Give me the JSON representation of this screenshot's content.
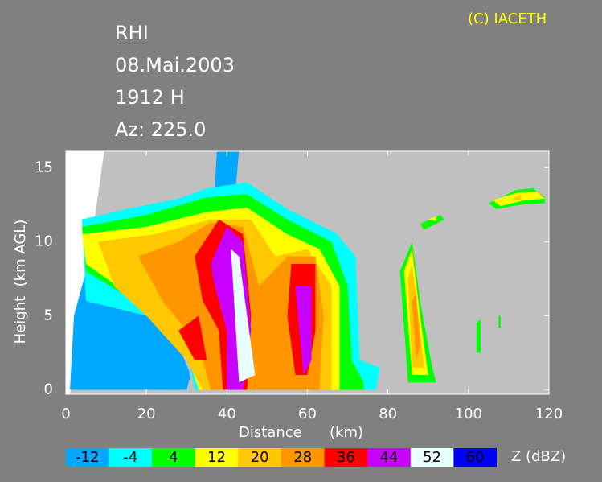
{
  "chart_data": {
    "type": "rhi",
    "title_lines": [
      "RHI",
      "08.Mai.2003",
      "1912 H",
      "Az: 225.0"
    ],
    "copyright": "(C) IACETH",
    "copyright_color": "#ffff00",
    "xlabel": "Distance      (km)",
    "ylabel": "Height  (km AGL)",
    "xlim": [
      0,
      120
    ],
    "ylim": [
      -0.3,
      16.1
    ],
    "xticks": [
      0,
      20,
      40,
      60,
      80,
      100,
      120
    ],
    "yticks": [
      0,
      5,
      10,
      15
    ],
    "colorbar": {
      "label": "Z (dBZ)",
      "levels": [
        -12,
        -4,
        4,
        12,
        20,
        28,
        36,
        44,
        52,
        60
      ],
      "colors": [
        "#00a8ff",
        "#00ffff",
        "#00ff00",
        "#ffff00",
        "#ffc800",
        "#ff9600",
        "#ff0000",
        "#c800ff",
        "#e8ffff",
        "#0000ff"
      ]
    }
  }
}
